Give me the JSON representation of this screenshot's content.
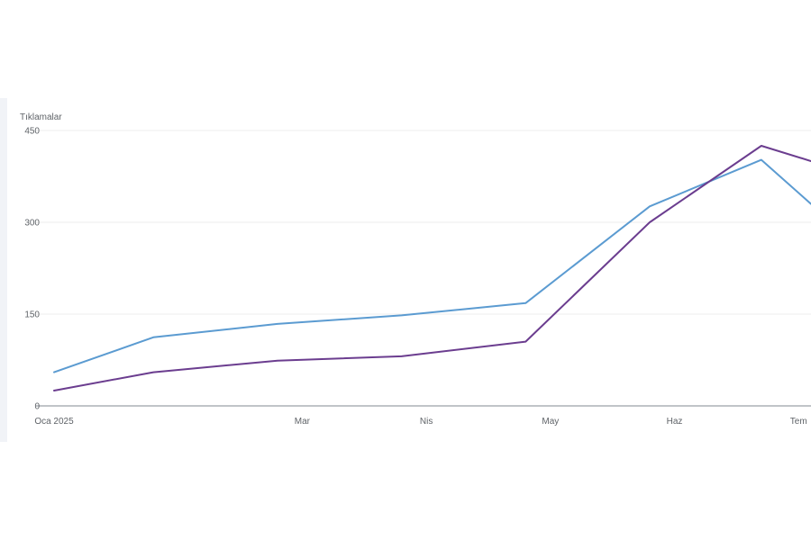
{
  "chart_data": {
    "type": "line",
    "ylabel": "Tıklamalar",
    "xlabel": "",
    "title": "",
    "ylim": [
      0,
      450
    ],
    "y_ticks": [
      0,
      150,
      300,
      450
    ],
    "x_ticks": [
      {
        "label": "Oca 2025",
        "x": 0
      },
      {
        "label": "Mar",
        "x": 2
      },
      {
        "label": "Nis",
        "x": 3
      },
      {
        "label": "May",
        "x": 4
      },
      {
        "label": "Haz",
        "x": 5
      },
      {
        "label": "Tem",
        "x": 6
      }
    ],
    "xlim": [
      0,
      6.1
    ],
    "grid": true,
    "series": [
      {
        "color": "#5b9bd1",
        "x": [
          0,
          0.8,
          1.8,
          2.8,
          3.8,
          4.8,
          5.7,
          6.1
        ],
        "values": [
          55,
          112,
          134,
          148,
          168,
          326,
          402,
          330
        ]
      },
      {
        "color": "#6b3d8f",
        "x": [
          0,
          0.8,
          1.8,
          2.8,
          3.8,
          4.8,
          5.7,
          6.1
        ],
        "values": [
          25,
          55,
          74,
          81,
          105,
          300,
          425,
          400
        ]
      }
    ]
  }
}
